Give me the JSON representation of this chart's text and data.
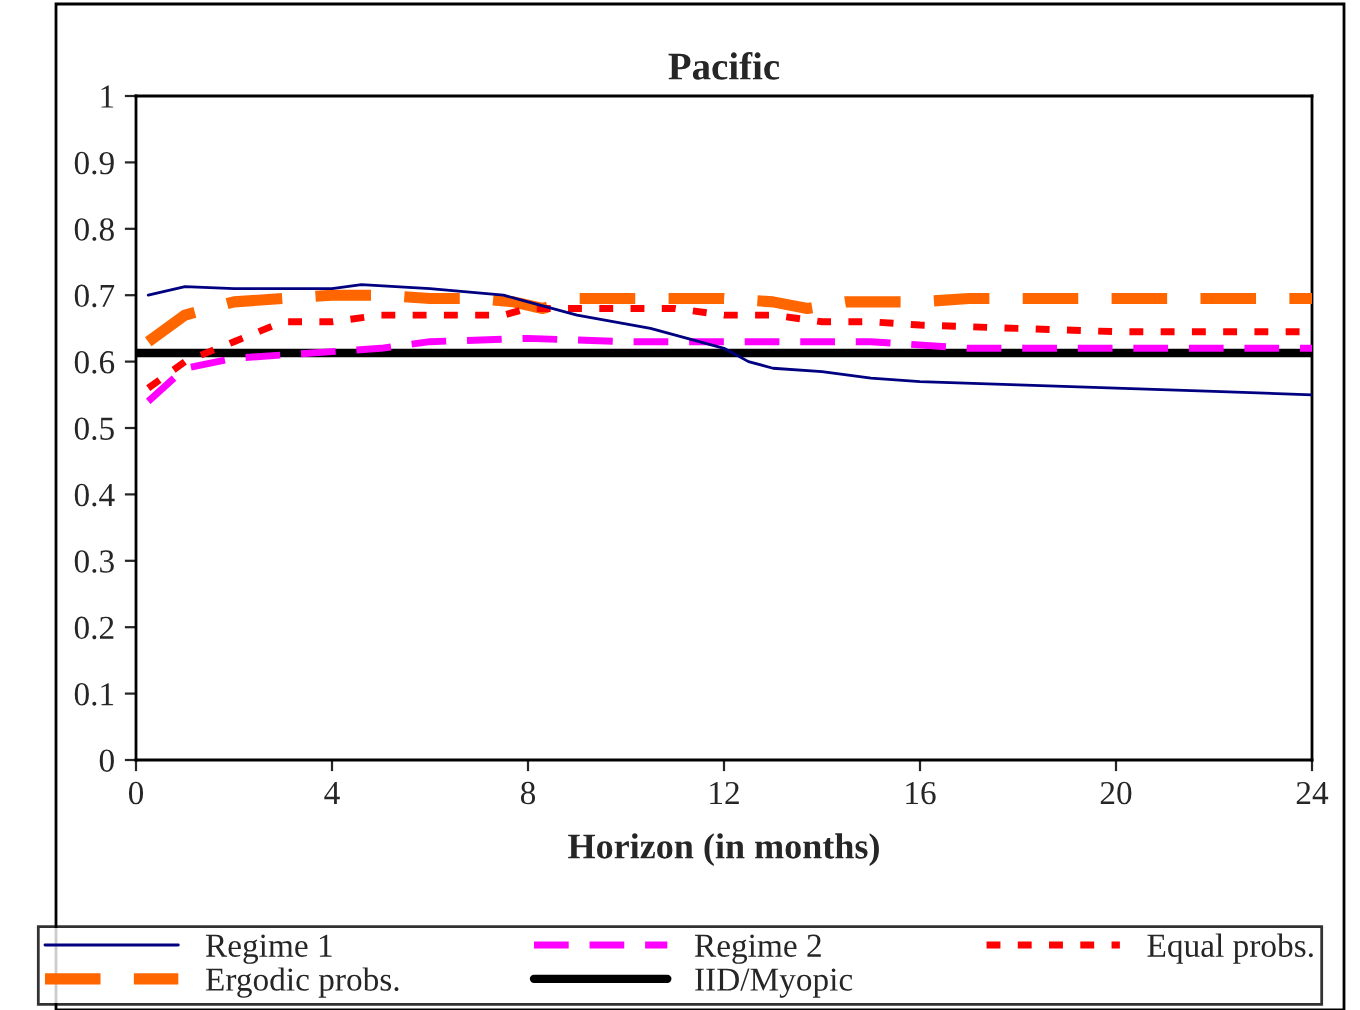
{
  "chart_data": {
    "type": "line",
    "title": "Pacific",
    "xlabel": "Horizon (in months)",
    "xlim": [
      0,
      24
    ],
    "xticks": [
      0,
      4,
      8,
      12,
      16,
      20,
      24
    ],
    "ylim": [
      0,
      1
    ],
    "yticks": [
      0,
      0.1,
      0.2,
      0.3,
      0.4,
      0.5,
      0.6,
      0.7,
      0.8,
      0.9,
      1
    ],
    "grid": false,
    "legend": "bottom",
    "marker": "none",
    "series": [
      {
        "name": "Regime 1",
        "color": "#000080",
        "line_style": "solid",
        "x": [
          0.25,
          1,
          2,
          4,
          4.6,
          6,
          7.5,
          8,
          9,
          10.5,
          12,
          12.5,
          13,
          14,
          15,
          16,
          18,
          20,
          22,
          24
        ],
        "values": [
          0.7,
          0.713,
          0.71,
          0.71,
          0.716,
          0.71,
          0.7,
          0.69,
          0.67,
          0.65,
          0.62,
          0.6,
          0.59,
          0.585,
          0.575,
          0.57,
          0.565,
          0.56,
          0.555,
          0.55
        ]
      },
      {
        "name": "Regime 2",
        "color": "#ff00ff",
        "line_style": "dashed",
        "x": [
          0.25,
          1,
          2,
          3,
          5,
          6,
          8,
          10,
          15,
          17,
          24
        ],
        "values": [
          0.54,
          0.59,
          0.605,
          0.61,
          0.62,
          0.63,
          0.635,
          0.63,
          0.63,
          0.62,
          0.62
        ]
      },
      {
        "name": "Equal probs.",
        "color": "#ff0000",
        "line_style": "dotted",
        "x": [
          0.25,
          1,
          2,
          3,
          4,
          5,
          7.5,
          8,
          11,
          12,
          13,
          14,
          15,
          16,
          18,
          20,
          24
        ],
        "values": [
          0.56,
          0.6,
          0.63,
          0.66,
          0.66,
          0.67,
          0.67,
          0.68,
          0.68,
          0.67,
          0.67,
          0.66,
          0.66,
          0.655,
          0.65,
          0.645,
          0.645
        ]
      },
      {
        "name": "Ergodic probs.",
        "color": "#ff6600",
        "line_style": "dashed",
        "x": [
          0.25,
          1,
          2,
          3,
          4,
          5,
          6,
          7,
          7.7,
          8.3,
          9,
          12,
          13,
          13.7,
          14.5,
          16,
          17,
          24
        ],
        "values": [
          0.63,
          0.67,
          0.69,
          0.695,
          0.7,
          0.7,
          0.695,
          0.695,
          0.69,
          0.68,
          0.695,
          0.695,
          0.69,
          0.68,
          0.69,
          0.69,
          0.695,
          0.695
        ]
      },
      {
        "name": "IID/Myopic",
        "color": "#000000",
        "line_style": "solid",
        "x": [
          0,
          24
        ],
        "values": [
          0.613,
          0.613
        ]
      }
    ]
  }
}
